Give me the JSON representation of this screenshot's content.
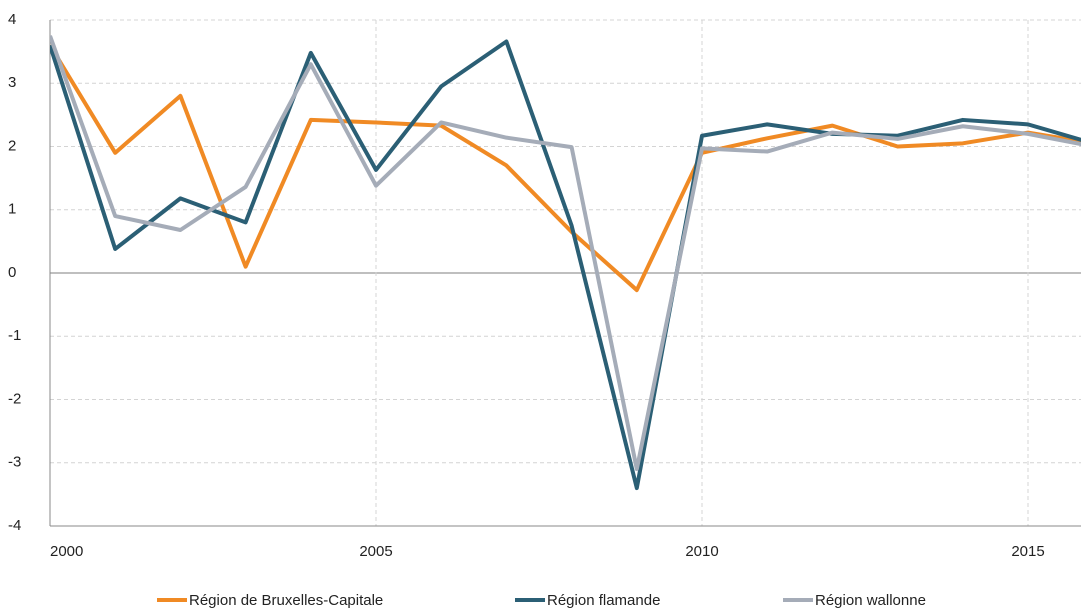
{
  "chart_data": {
    "type": "line",
    "x": [
      2000,
      2001,
      2002,
      2003,
      2004,
      2005,
      2006,
      2007,
      2008,
      2009,
      2010,
      2011,
      2012,
      2013,
      2014,
      2015,
      2016
    ],
    "series": [
      {
        "name": "Région de Bruxelles-Capitale",
        "color": "#f08a24",
        "values": [
          3.6,
          1.9,
          2.8,
          0.1,
          2.42,
          2.38,
          2.33,
          1.7,
          0.65,
          -0.27,
          1.9,
          2.13,
          2.33,
          2.0,
          2.05,
          2.22,
          2.05
        ]
      },
      {
        "name": "Région flamande",
        "color": "#2b5f75",
        "values": [
          3.6,
          0.38,
          1.18,
          0.8,
          3.48,
          1.63,
          2.95,
          3.66,
          0.75,
          -3.4,
          2.17,
          2.35,
          2.2,
          2.17,
          2.42,
          2.35,
          2.05
        ]
      },
      {
        "name": "Région wallonne",
        "color": "#a5acb8",
        "values": [
          3.75,
          0.9,
          0.68,
          1.36,
          3.3,
          1.38,
          2.38,
          2.14,
          1.99,
          -3.1,
          1.97,
          1.92,
          2.22,
          2.12,
          2.32,
          2.2,
          2.0
        ]
      }
    ],
    "xlim": [
      2000,
      2016
    ],
    "xticks": [
      2000,
      2005,
      2010,
      2015
    ],
    "ylim": [
      -4,
      4
    ],
    "yticks": [
      -4,
      -3,
      -2,
      -1,
      0,
      1,
      2,
      3,
      4
    ],
    "grid": true,
    "legend": "bottom"
  }
}
